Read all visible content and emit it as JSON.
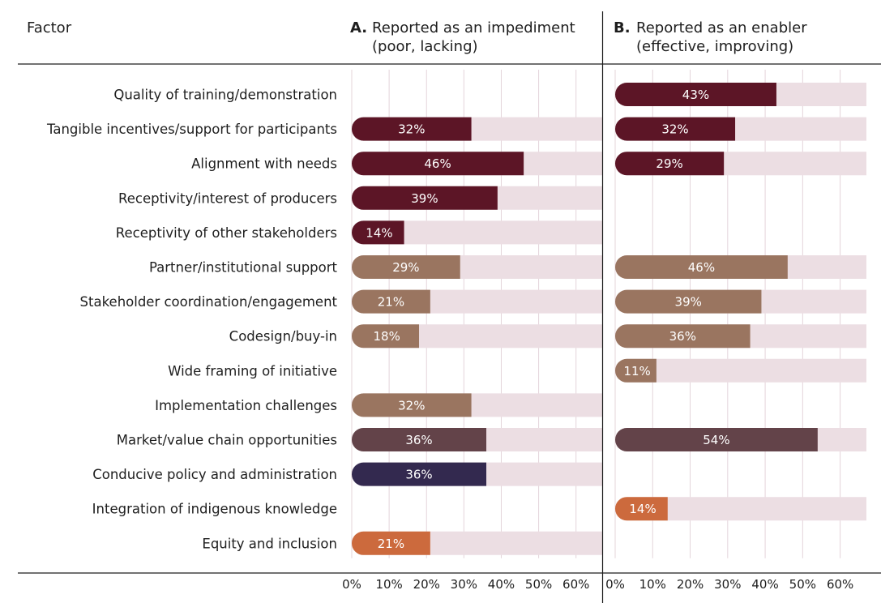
{
  "chart_data": {
    "type": "bar",
    "factor_header": "Factor",
    "panels": [
      {
        "letter": "A.",
        "title_line1": "Reported as an impediment",
        "title_line2": "(poor, lacking)"
      },
      {
        "letter": "B.",
        "title_line1": "Reported as an enabler",
        "title_line2": "(effective, improving)"
      }
    ],
    "xlim": [
      0,
      67
    ],
    "ticks": [
      0,
      10,
      20,
      30,
      40,
      50,
      60
    ],
    "tick_labels": [
      "0%",
      "10%",
      "20%",
      "30%",
      "40%",
      "50%",
      "60%"
    ],
    "grid": true,
    "colors": {
      "maroon": "#5c1526",
      "brown": "#9a7560",
      "plum": "#634349",
      "navy": "#33294f",
      "orange": "#cc6a3d",
      "track": "#ecdee3",
      "grid": "#e4d4da"
    },
    "factors": [
      {
        "label": "Quality of training/demonstration",
        "color": "maroon",
        "A": null,
        "B": 43,
        "A_label": "",
        "B_label": "43%"
      },
      {
        "label": "Tangible incentives/support for participants",
        "color": "maroon",
        "A": 32,
        "B": 32,
        "A_label": "32%",
        "B_label": "32%"
      },
      {
        "label": "Alignment with needs",
        "color": "maroon",
        "A": 46,
        "B": 29,
        "A_label": "46%",
        "B_label": "29%"
      },
      {
        "label": "Receptivity/interest of producers",
        "color": "maroon",
        "A": 39,
        "B": null,
        "A_label": "39%",
        "B_label": ""
      },
      {
        "label": "Receptivity of other stakeholders",
        "color": "maroon",
        "A": 14,
        "B": null,
        "A_label": "14%",
        "B_label": ""
      },
      {
        "label": "Partner/institutional support",
        "color": "brown",
        "A": 29,
        "B": 46,
        "A_label": "29%",
        "B_label": "46%"
      },
      {
        "label": "Stakeholder coordination/engagement",
        "color": "brown",
        "A": 21,
        "B": 39,
        "A_label": "21%",
        "B_label": "39%"
      },
      {
        "label": "Codesign/buy-in",
        "color": "brown",
        "A": 18,
        "B": 36,
        "A_label": "18%",
        "B_label": "36%"
      },
      {
        "label": "Wide framing of initiative",
        "color": "brown",
        "A": null,
        "B": 11,
        "A_label": "",
        "B_label": "11%"
      },
      {
        "label": "Implementation challenges",
        "color": "brown",
        "A": 32,
        "B": null,
        "A_label": "32%",
        "B_label": ""
      },
      {
        "label": "Market/value chain opportunities",
        "color": "plum",
        "A": 36,
        "B": 54,
        "A_label": "36%",
        "B_label": "54%"
      },
      {
        "label": "Conducive policy and administration",
        "color": "navy",
        "A": 36,
        "B": null,
        "A_label": "36%",
        "B_label": ""
      },
      {
        "label": "Integration of indigenous knowledge",
        "color": "orange",
        "A": null,
        "B": 14,
        "A_label": "",
        "B_label": "14%"
      },
      {
        "label": "Equity and inclusion",
        "color": "orange",
        "A": 21,
        "B": null,
        "A_label": "21%",
        "B_label": ""
      }
    ]
  }
}
